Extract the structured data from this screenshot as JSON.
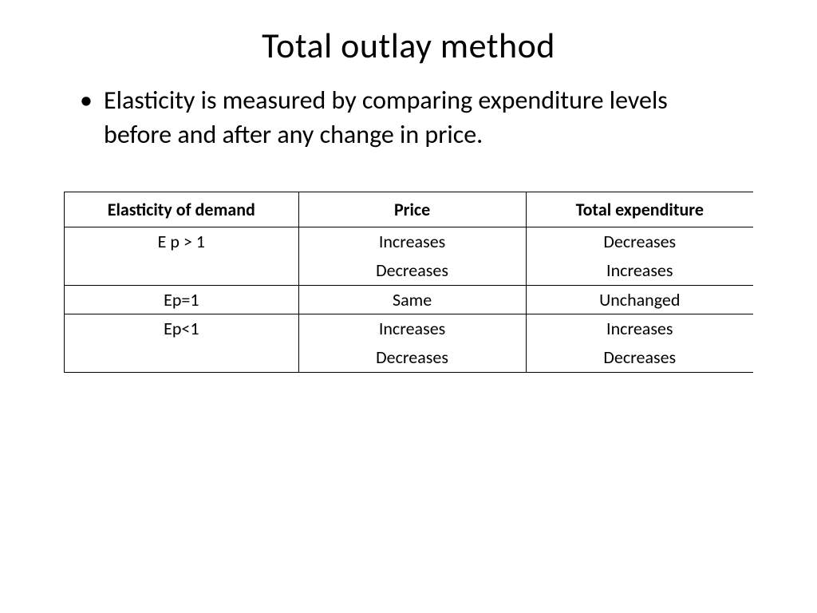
{
  "title": "Total outlay method",
  "bullet": "Elasticity is measured by comparing expenditure levels before and after any change in price.",
  "table": {
    "columns": [
      "Elasticity of demand",
      "Price",
      "Total expenditure"
    ],
    "column_widths": [
      "34%",
      "33%",
      "33%"
    ],
    "header_fontsize": 22,
    "cell_fontsize": 22,
    "border_color": "#000000",
    "background_color": "#ffffff",
    "groups": [
      {
        "elasticity": "E p > 1",
        "rows": [
          {
            "price": "Increases",
            "total": "Decreases"
          },
          {
            "price": "Decreases",
            "total": "Increases"
          }
        ]
      },
      {
        "elasticity": "Ep=1",
        "rows": [
          {
            "price": "Same",
            "total": "Unchanged"
          }
        ]
      },
      {
        "elasticity": "Ep<1",
        "rows": [
          {
            "price": "Increases",
            "total": "Increases"
          },
          {
            "price": "Decreases",
            "total": "Decreases"
          }
        ]
      }
    ]
  }
}
